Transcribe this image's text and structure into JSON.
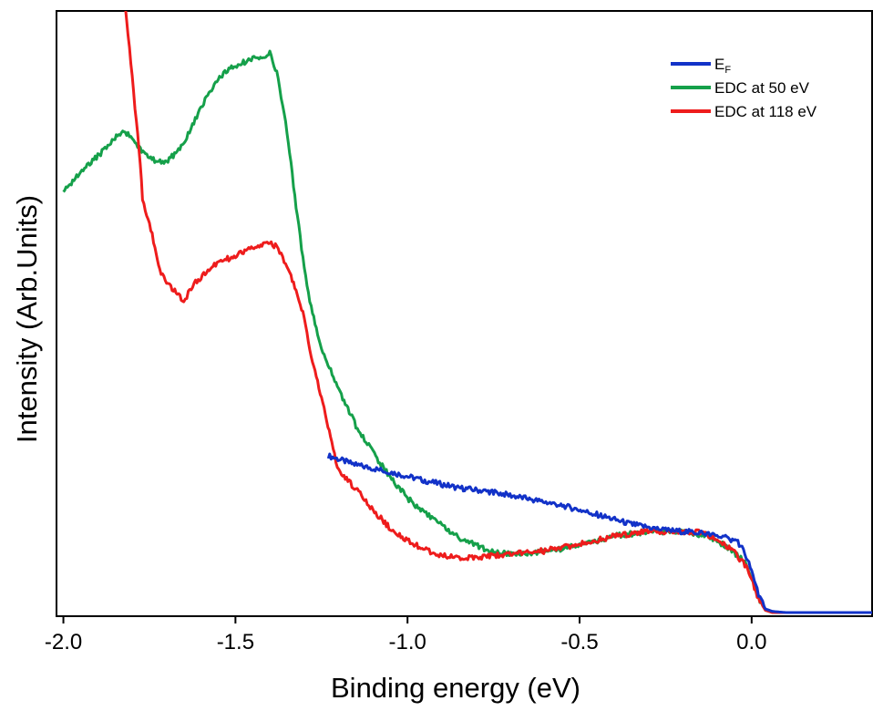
{
  "chart_data": {
    "type": "line",
    "title": "",
    "xlabel": "Binding energy (eV)",
    "ylabel": "Intensity (Arb.Units)",
    "xlim": [
      -2.02,
      0.35
    ],
    "ylim": [
      0,
      100
    ],
    "x_ticks": [
      {
        "value": -2.0,
        "label": "-2.0"
      },
      {
        "value": -1.5,
        "label": "-1.5"
      },
      {
        "value": -1.0,
        "label": "-1.0"
      },
      {
        "value": -0.5,
        "label": "-0.5"
      },
      {
        "value": 0.0,
        "label": "0.0"
      }
    ],
    "y_ticks_shown": false,
    "grid": false,
    "legend_position": "top-right",
    "series": [
      {
        "name": "E",
        "name_sub": "F",
        "color": "#1232c8",
        "x": [
          -1.23,
          -1.15,
          -1.05,
          -0.95,
          -0.85,
          -0.75,
          -0.65,
          -0.55,
          -0.45,
          -0.35,
          -0.25,
          -0.15,
          -0.08,
          -0.04,
          -0.02,
          0.0,
          0.02,
          0.04,
          0.06,
          0.1,
          0.2,
          0.35
        ],
        "y": [
          26.5,
          25.0,
          23.8,
          22.4,
          21.2,
          20.5,
          19.4,
          18.3,
          16.8,
          15.2,
          14.2,
          13.8,
          13.0,
          12.3,
          10.5,
          7.5,
          3.5,
          1.2,
          0.8,
          0.6,
          0.6,
          0.6
        ]
      },
      {
        "name": "EDC at 50 eV",
        "color": "#15a04a",
        "x": [
          -2.0,
          -1.95,
          -1.9,
          -1.85,
          -1.82,
          -1.78,
          -1.75,
          -1.7,
          -1.65,
          -1.6,
          -1.55,
          -1.5,
          -1.45,
          -1.42,
          -1.4,
          -1.38,
          -1.35,
          -1.32,
          -1.3,
          -1.28,
          -1.25,
          -1.2,
          -1.15,
          -1.1,
          -1.05,
          -1.0,
          -0.95,
          -0.9,
          -0.85,
          -0.8,
          -0.75,
          -0.7,
          -0.6,
          -0.5,
          -0.4,
          -0.3,
          -0.25,
          -0.2,
          -0.15,
          -0.1,
          -0.05,
          -0.02,
          0.0,
          0.02,
          0.04,
          0.06,
          0.1,
          0.2,
          0.35
        ],
        "y": [
          70.0,
          73.5,
          76.0,
          79.0,
          80.0,
          77.5,
          75.5,
          75.0,
          78.0,
          84.0,
          89.0,
          91.0,
          92.0,
          92.5,
          93.0,
          90.0,
          80.0,
          66.0,
          57.5,
          51.0,
          44.5,
          37.5,
          31.5,
          27.0,
          23.0,
          19.5,
          17.0,
          15.0,
          13.0,
          11.7,
          10.6,
          10.3,
          10.6,
          11.7,
          13.2,
          14.0,
          14.0,
          14.0,
          13.5,
          12.5,
          10.5,
          9.0,
          6.5,
          3.0,
          1.0,
          0.6,
          0.6,
          0.6,
          0.6
        ]
      },
      {
        "name": "EDC at 118 eV",
        "color": "#ee1c1c",
        "x": [
          -1.82,
          -1.8,
          -1.78,
          -1.77,
          -1.75,
          -1.73,
          -1.72,
          -1.7,
          -1.68,
          -1.65,
          -1.62,
          -1.58,
          -1.55,
          -1.5,
          -1.45,
          -1.4,
          -1.38,
          -1.35,
          -1.32,
          -1.3,
          -1.28,
          -1.25,
          -1.22,
          -1.2,
          -1.15,
          -1.1,
          -1.05,
          -1.0,
          -0.95,
          -0.9,
          -0.85,
          -0.8,
          -0.75,
          -0.7,
          -0.6,
          -0.5,
          -0.4,
          -0.3,
          -0.25,
          -0.2,
          -0.15,
          -0.1,
          -0.05,
          -0.02,
          0.0,
          0.02,
          0.04,
          0.06,
          0.1,
          0.2,
          0.35
        ],
        "y": [
          101.0,
          89.0,
          77.0,
          69.0,
          65.0,
          60.0,
          57.0,
          55.0,
          54.0,
          52.0,
          55.0,
          57.0,
          58.5,
          59.5,
          61.0,
          61.5,
          61.0,
          58.0,
          53.0,
          49.5,
          43.0,
          36.0,
          28.5,
          24.0,
          21.0,
          17.5,
          14.5,
          12.5,
          11.0,
          10.0,
          9.6,
          9.6,
          10.0,
          10.4,
          10.8,
          11.9,
          13.2,
          14.0,
          14.0,
          14.0,
          13.8,
          12.8,
          10.5,
          8.5,
          6.0,
          2.8,
          1.0,
          0.6,
          0.6,
          0.6,
          0.6
        ]
      }
    ]
  }
}
